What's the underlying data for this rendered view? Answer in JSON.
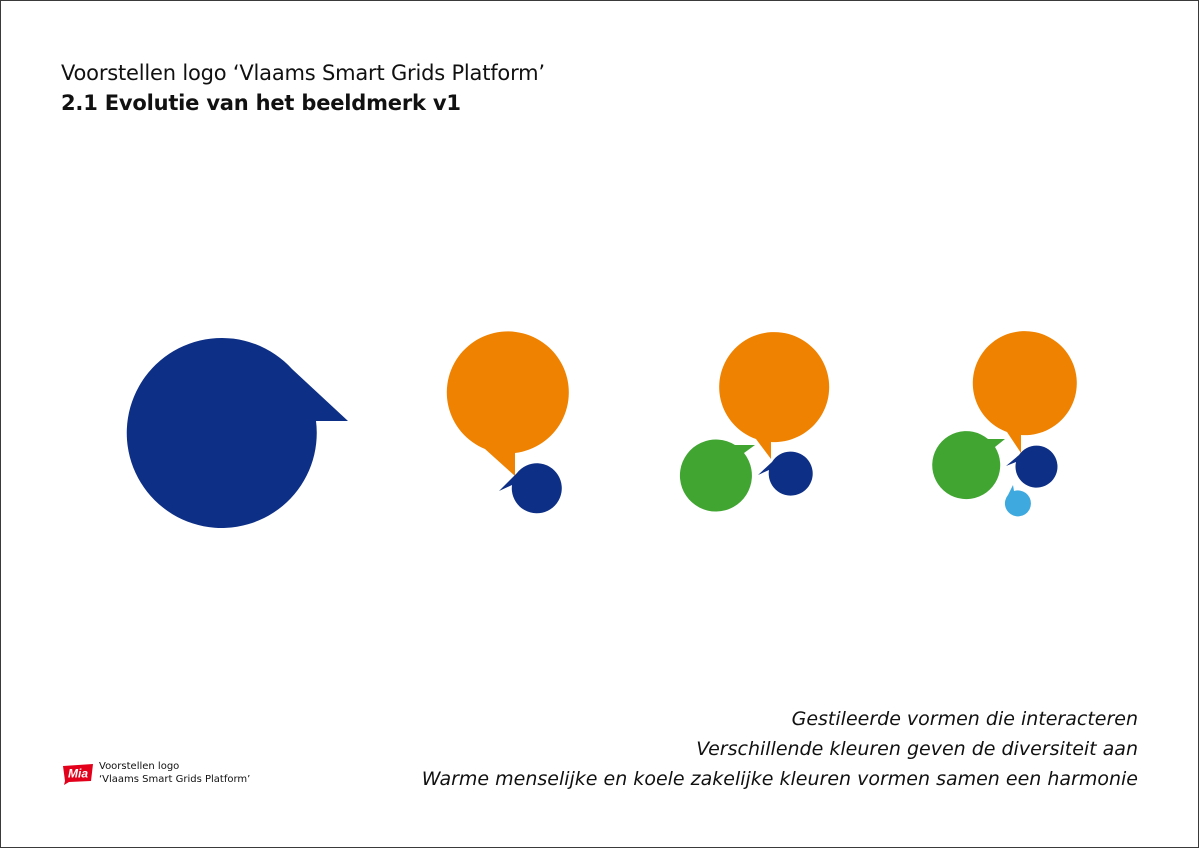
{
  "header": {
    "subtitle": "Voorstellen logo ‘Vlaams Smart Grids Platform’",
    "title": "2.1 Evolutie van het beeldmerk v1"
  },
  "colors": {
    "navy": "#0d2f86",
    "orange": "#ef8200",
    "green": "#41a532",
    "light_blue": "#3ea9de",
    "brand_red": "#e2001a"
  },
  "variants": [
    {
      "name": "variant-1",
      "bubbles": [
        "navy"
      ]
    },
    {
      "name": "variant-2",
      "bubbles": [
        "orange",
        "navy"
      ]
    },
    {
      "name": "variant-3",
      "bubbles": [
        "orange",
        "green",
        "navy"
      ]
    },
    {
      "name": "variant-4",
      "bubbles": [
        "orange",
        "green",
        "navy",
        "light_blue"
      ]
    }
  ],
  "caption": {
    "lines": [
      "Gestileerde vormen die interacteren",
      "Verschillende kleuren geven de diversiteit aan",
      "Warme menselijke en koele zakelijke kleuren vormen samen een harmonie"
    ]
  },
  "footer": {
    "logo_text": "Mia",
    "line1": "Voorstellen logo",
    "line2": "‘Vlaams Smart Grids Platform’"
  }
}
